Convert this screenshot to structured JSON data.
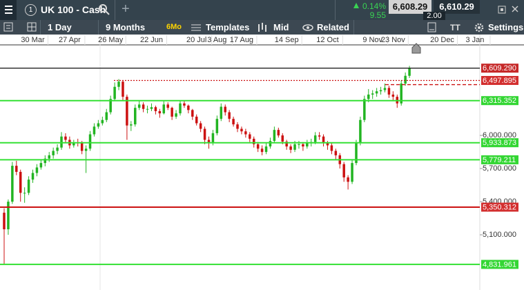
{
  "toolbar": {
    "instrument_number": "1",
    "instrument": "UK 100 - Cash",
    "change_pct": "0.14%",
    "change": "9.55",
    "sell": "6,608.29",
    "spread": "2.00",
    "buy": "6,610.29",
    "interval": "1 Day",
    "period": "9 Months",
    "period_badge": "6Mo",
    "templates": "Templates",
    "price_type": "Mid",
    "related": "Related",
    "settings": "Settings"
  },
  "chart_data": {
    "type": "candlestick",
    "up_color": "#22b422",
    "down_color": "#cc1111",
    "categories": [
      null,
      null,
      null,
      null,
      null,
      null,
      null,
      "30 Mar",
      null,
      null,
      null,
      null,
      null,
      null,
      null,
      null,
      "27 Apr",
      null,
      null,
      null,
      null,
      null,
      null,
      null,
      null,
      null,
      "26 May",
      null,
      null,
      null,
      null,
      null,
      null,
      null,
      null,
      null,
      "22 Jun",
      null,
      null,
      null,
      null,
      null,
      null,
      null,
      null,
      null,
      null,
      "20 Jul",
      null,
      null,
      null,
      null,
      "3 Aug",
      null,
      null,
      null,
      null,
      null,
      "17 Aug",
      null,
      null,
      null,
      null,
      null,
      null,
      null,
      null,
      null,
      null,
      "14 Sep",
      null,
      null,
      null,
      null,
      null,
      null,
      null,
      null,
      null,
      "12 Oct",
      null,
      null,
      null,
      null,
      null,
      null,
      null,
      null,
      null,
      null,
      "9 Nov",
      null,
      null,
      null,
      null,
      "23 Nov",
      null,
      null,
      null,
      null,
      null,
      null,
      null,
      null,
      null,
      null,
      null,
      "20 Dec",
      null,
      null,
      null,
      null,
      null,
      null,
      null,
      "3 Jan",
      null
    ],
    "ohlc": [
      [
        5300,
        5340,
        4830,
        5150
      ],
      [
        5150,
        5420,
        5100,
        5400
      ],
      [
        5400,
        5760,
        5380,
        5725
      ],
      [
        5725,
        5770,
        5640,
        5670
      ],
      [
        5670,
        5690,
        5400,
        5480
      ],
      [
        5480,
        5530,
        5390,
        5480
      ],
      [
        5480,
        5630,
        5460,
        5600
      ],
      [
        5600,
        5690,
        5570,
        5660
      ],
      [
        5660,
        5740,
        5630,
        5710
      ],
      [
        5710,
        5780,
        5690,
        5750
      ],
      [
        5750,
        5820,
        5720,
        5790
      ],
      [
        5790,
        5850,
        5760,
        5820
      ],
      [
        5820,
        5890,
        5790,
        5860
      ],
      [
        5860,
        5920,
        5830,
        5890
      ],
      [
        5890,
        6030,
        5870,
        5990
      ],
      [
        5990,
        6020,
        5930,
        5960
      ],
      [
        5960,
        5990,
        5880,
        5910
      ],
      [
        5910,
        5960,
        5890,
        5935
      ],
      [
        5935,
        5970,
        5900,
        5930
      ],
      [
        5930,
        5950,
        5830,
        5860
      ],
      [
        5860,
        5910,
        5660,
        5880
      ],
      [
        5880,
        6040,
        5860,
        6010
      ],
      [
        6010,
        6110,
        5990,
        6080
      ],
      [
        6080,
        6140,
        6060,
        6110
      ],
      [
        6110,
        6170,
        6090,
        6140
      ],
      [
        6140,
        6240,
        6120,
        6210
      ],
      [
        6210,
        6360,
        6190,
        6330
      ],
      [
        6330,
        6480,
        6310,
        6440
      ],
      [
        6440,
        6510,
        6410,
        6487
      ],
      [
        6487,
        6500,
        6320,
        6350
      ],
      [
        6350,
        6370,
        5960,
        6090
      ],
      [
        6090,
        6130,
        6040,
        6100
      ],
      [
        6100,
        6280,
        6080,
        6250
      ],
      [
        6250,
        6310,
        6230,
        6280
      ],
      [
        6280,
        6300,
        6210,
        6240
      ],
      [
        6240,
        6270,
        6200,
        6240
      ],
      [
        6240,
        6290,
        6220,
        6256
      ],
      [
        6256,
        6270,
        6190,
        6220
      ],
      [
        6220,
        6240,
        6160,
        6200
      ],
      [
        6200,
        6310,
        6190,
        6280
      ],
      [
        6280,
        6300,
        6230,
        6250
      ],
      [
        6250,
        6260,
        6140,
        6170
      ],
      [
        6170,
        6230,
        6150,
        6200
      ],
      [
        6200,
        6310,
        6180,
        6290
      ],
      [
        6290,
        6310,
        6250,
        6270
      ],
      [
        6270,
        6280,
        6200,
        6230
      ],
      [
        6230,
        6240,
        6140,
        6170
      ],
      [
        6170,
        6190,
        6090,
        6110
      ],
      [
        6110,
        6130,
        6030,
        6060
      ],
      [
        6060,
        6080,
        5920,
        5960
      ],
      [
        5960,
        5990,
        5880,
        5930
      ],
      [
        5930,
        6050,
        5910,
        6020
      ],
      [
        6020,
        6180,
        6000,
        6150
      ],
      [
        6150,
        6290,
        6130,
        6260
      ],
      [
        6260,
        6280,
        6180,
        6210
      ],
      [
        6210,
        6230,
        6120,
        6150
      ],
      [
        6150,
        6170,
        6080,
        6100
      ],
      [
        6100,
        6120,
        6030,
        6060
      ],
      [
        6060,
        6080,
        6010,
        6037
      ],
      [
        6037,
        6060,
        5980,
        6010
      ],
      [
        6010,
        6030,
        5940,
        5970
      ],
      [
        5970,
        5990,
        5890,
        5920
      ],
      [
        5920,
        5940,
        5850,
        5880
      ],
      [
        5880,
        5910,
        5820,
        5850
      ],
      [
        5850,
        5930,
        5830,
        5900
      ],
      [
        5900,
        5980,
        5880,
        5950
      ],
      [
        5950,
        6080,
        5930,
        6050
      ],
      [
        6050,
        6070,
        5980,
        6000
      ],
      [
        6000,
        6020,
        5920,
        5944
      ],
      [
        5944,
        5960,
        5870,
        5900
      ],
      [
        5900,
        5920,
        5840,
        5870
      ],
      [
        5870,
        5950,
        5850,
        5920
      ],
      [
        5920,
        5950,
        5880,
        5920
      ],
      [
        5920,
        5940,
        5860,
        5900
      ],
      [
        5900,
        5960,
        5880,
        5930
      ],
      [
        5930,
        5970,
        5900,
        5940
      ],
      [
        5940,
        6030,
        5920,
        6000
      ],
      [
        6000,
        6030,
        5960,
        5990
      ],
      [
        5990,
        6010,
        5900,
        5930
      ],
      [
        5930,
        5950,
        5870,
        5910
      ],
      [
        5910,
        5930,
        5830,
        5860
      ],
      [
        5860,
        5880,
        5780,
        5820
      ],
      [
        5820,
        5840,
        5700,
        5740
      ],
      [
        5740,
        5760,
        5580,
        5620
      ],
      [
        5620,
        5640,
        5510,
        5580
      ],
      [
        5580,
        5780,
        5560,
        5750
      ],
      [
        5750,
        5960,
        5730,
        5930
      ],
      [
        5930,
        6170,
        5910,
        6140
      ],
      [
        6140,
        6360,
        6120,
        6330
      ],
      [
        6330,
        6420,
        6300,
        6370
      ],
      [
        6370,
        6410,
        6330,
        6380
      ],
      [
        6380,
        6430,
        6350,
        6400
      ],
      [
        6400,
        6440,
        6370,
        6410
      ],
      [
        6410,
        6470,
        6390,
        6430
      ],
      [
        6430,
        6450,
        6340,
        6370
      ],
      [
        6370,
        6400,
        6310,
        6350
      ],
      [
        6350,
        6370,
        6250,
        6290
      ],
      [
        6290,
        6500,
        6270,
        6470
      ],
      [
        6470,
        6570,
        6450,
        6540
      ],
      [
        6540,
        6630,
        6520,
        6609
      ],
      null,
      null,
      null,
      null,
      null,
      null,
      null,
      null,
      null,
      null,
      null,
      null,
      null,
      null,
      null,
      null,
      null
    ],
    "ylim": [
      4600,
      6820
    ],
    "yticks": [
      {
        "value": 6000,
        "label": "6,000.000"
      },
      {
        "value": 5700,
        "label": "5,700.000"
      },
      {
        "value": 5400,
        "label": "5,400.000"
      },
      {
        "value": 5100,
        "label": "5,100.000"
      }
    ],
    "levels": [
      {
        "value": 6609.29,
        "label": "6,609.290",
        "color": "#222222",
        "label_color": "#c62828",
        "style": "solid"
      },
      {
        "value": 6497.895,
        "label": "6,497.895",
        "color": "#cc1111",
        "label_color": "#d32f2f",
        "style": "dotted"
      },
      {
        "value": 6460,
        "color": "#cc1111",
        "style": "dashed"
      },
      {
        "value": 6315.352,
        "label": "6,315.352",
        "color": "#33e033",
        "label_color": "#33d633",
        "style": "solid"
      },
      {
        "value": 5933.873,
        "label": "5,933.873",
        "color": "#33e033",
        "label_color": "#33d633",
        "style": "solid"
      },
      {
        "value": 5779.211,
        "label": "5,779.211",
        "color": "#33e033",
        "label_color": "#33d633",
        "style": "solid"
      },
      {
        "value": 5350.312,
        "label": "5,350.312",
        "color": "#cc1111",
        "label_color": "#d32f2f",
        "style": "solid"
      },
      {
        "value": 4831.961,
        "label": "4,831.961",
        "color": "#33e033",
        "label_color": "#33d633",
        "style": "solid"
      }
    ]
  }
}
